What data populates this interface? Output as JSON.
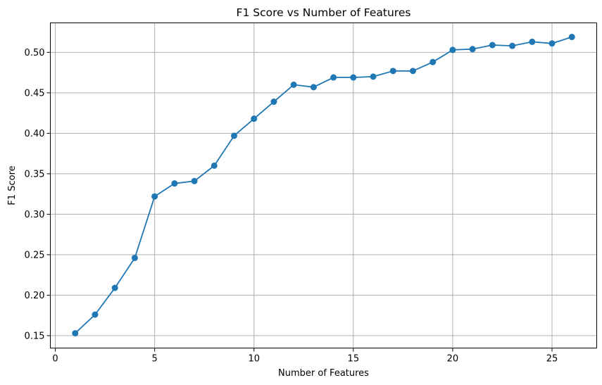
{
  "chart_data": {
    "type": "line",
    "title": "F1 Score vs Number of Features",
    "xlabel": "Number of Features",
    "ylabel": "F1 Score",
    "xlim": [
      -0.25,
      27.25
    ],
    "ylim": [
      0.1347,
      0.5364
    ],
    "x_ticks": [
      0,
      5,
      10,
      15,
      20,
      25
    ],
    "y_ticks": [
      0.15,
      0.2,
      0.25,
      0.3,
      0.35,
      0.4,
      0.45,
      0.5
    ],
    "x_tick_labels": [
      "0",
      "5",
      "10",
      "15",
      "20",
      "25"
    ],
    "y_tick_labels": [
      "0.15",
      "0.20",
      "0.25",
      "0.30",
      "0.35",
      "0.40",
      "0.45",
      "0.50"
    ],
    "grid": true,
    "marker": "circle",
    "color": "#1f77b4",
    "series": [
      {
        "x": [
          1,
          2,
          3,
          4,
          5,
          6,
          7,
          8,
          9,
          10,
          11,
          12,
          13,
          14,
          15,
          16,
          17,
          18,
          19,
          20,
          21,
          22,
          23,
          24,
          25,
          26
        ],
        "values": [
          0.153,
          0.176,
          0.209,
          0.246,
          0.322,
          0.338,
          0.341,
          0.36,
          0.397,
          0.418,
          0.439,
          0.46,
          0.457,
          0.469,
          0.469,
          0.47,
          0.477,
          0.477,
          0.488,
          0.503,
          0.504,
          0.509,
          0.508,
          0.513,
          0.511,
          0.519
        ]
      }
    ]
  }
}
